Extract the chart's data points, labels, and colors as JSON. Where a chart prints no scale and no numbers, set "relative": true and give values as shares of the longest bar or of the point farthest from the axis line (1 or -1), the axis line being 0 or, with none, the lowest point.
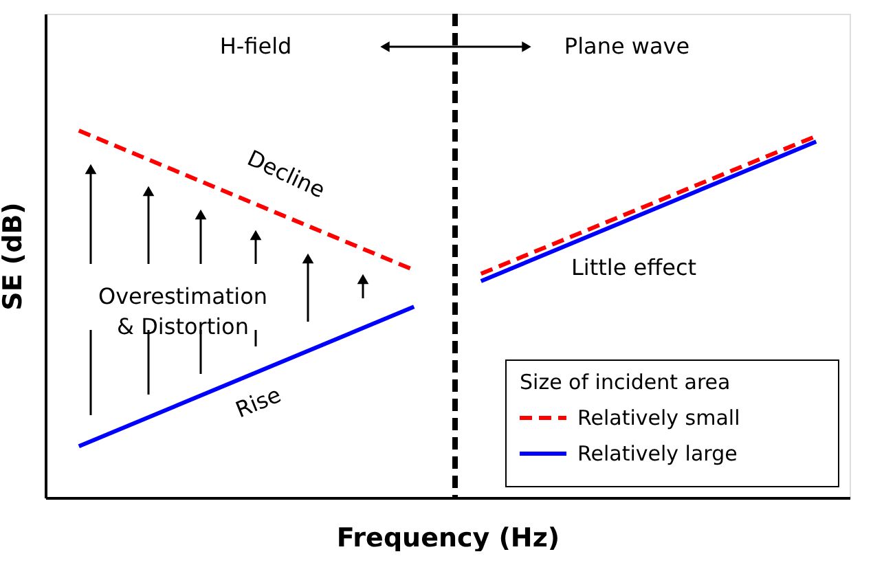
{
  "chart_data": {
    "type": "line",
    "relative": true,
    "xlabel": "Frequency (Hz)",
    "ylabel": "SE (dB)",
    "legend_title": "Size of incident area",
    "legend": "bottom right",
    "grid": false,
    "categories": [
      null,
      null,
      null,
      null,
      null,
      null,
      null,
      null,
      null,
      null,
      null,
      null,
      null,
      null,
      null,
      null,
      null,
      null,
      null,
      null,
      null,
      null,
      null
    ],
    "series": [
      {
        "name": "Relatively small",
        "color": "#ff0000",
        "line_style": "dashed",
        "values": [
          1.0,
          null,
          null,
          null,
          null,
          null,
          null,
          null,
          null,
          null,
          0.62,
          null,
          null,
          null,
          null,
          null,
          null,
          null,
          null,
          null,
          null,
          null,
          null
        ]
      },
      {
        "color": "#ff0000",
        "line_style": "dashed",
        "values": [
          null,
          null,
          null,
          null,
          null,
          null,
          null,
          null,
          null,
          null,
          null,
          null,
          0.61,
          null,
          null,
          null,
          null,
          null,
          null,
          null,
          null,
          null,
          0.985
        ]
      },
      {
        "name": "Relatively large",
        "color": "#0000ff",
        "line_style": "solid",
        "values": [
          0.14,
          null,
          null,
          null,
          null,
          null,
          null,
          null,
          null,
          null,
          0.52,
          null,
          null,
          null,
          null,
          null,
          null,
          null,
          null,
          null,
          null,
          null,
          null
        ]
      },
      {
        "color": "#0000ff",
        "line_style": "solid",
        "values": [
          null,
          null,
          null,
          null,
          null,
          null,
          null,
          null,
          null,
          null,
          null,
          null,
          0.59,
          null,
          null,
          null,
          null,
          null,
          null,
          null,
          null,
          null,
          0.97
        ]
      }
    ],
    "annotations": [
      "H-field",
      "Plane wave",
      "Decline",
      "Overestimation\n& Distortion",
      "Rise",
      "Little effect"
    ]
  }
}
